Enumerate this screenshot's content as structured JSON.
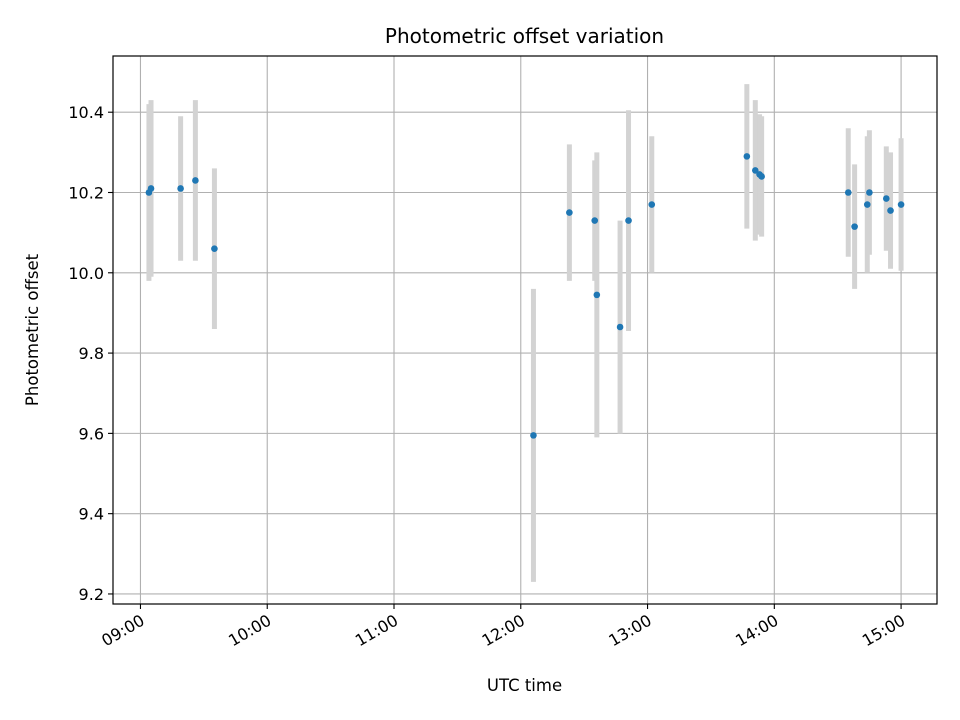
{
  "chart_data": {
    "type": "scatter",
    "title": "Photometric offset variation",
    "xlabel": "UTC time",
    "ylabel": "Photometric offset",
    "xlim": [
      "08:47",
      "15:17"
    ],
    "ylim": [
      9.175,
      10.54
    ],
    "grid": true,
    "x_ticks": [
      "09:00",
      "10:00",
      "11:00",
      "12:00",
      "13:00",
      "14:00",
      "15:00"
    ],
    "y_ticks": [
      9.2,
      9.4,
      9.6,
      9.8,
      10.0,
      10.2,
      10.4
    ],
    "y_tick_labels": [
      "9.2",
      "9.4",
      "9.6",
      "9.8",
      "10.0",
      "10.2",
      "10.4"
    ],
    "colors": {
      "points": "#1f77b4",
      "errorbars": "#d3d3d3",
      "grid": "#b0b0b0"
    },
    "points": [
      {
        "x": "09:04",
        "y": 10.2,
        "err": 0.22
      },
      {
        "x": "09:05",
        "y": 10.21,
        "err": 0.22
      },
      {
        "x": "09:19",
        "y": 10.21,
        "err": 0.18
      },
      {
        "x": "09:26",
        "y": 10.23,
        "err": 0.2
      },
      {
        "x": "09:35",
        "y": 10.06,
        "err": 0.2
      },
      {
        "x": "12:06",
        "y": 9.595,
        "err": 0.365
      },
      {
        "x": "12:23",
        "y": 10.15,
        "err": 0.17
      },
      {
        "x": "12:35",
        "y": 10.13,
        "err": 0.15
      },
      {
        "x": "12:36",
        "y": 9.945,
        "err": 0.355
      },
      {
        "x": "12:47",
        "y": 9.865,
        "err": 0.265
      },
      {
        "x": "12:51",
        "y": 10.13,
        "err": 0.275
      },
      {
        "x": "13:02",
        "y": 10.17,
        "err": 0.17
      },
      {
        "x": "13:47",
        "y": 10.29,
        "err": 0.18
      },
      {
        "x": "13:51",
        "y": 10.255,
        "err": 0.175
      },
      {
        "x": "13:53",
        "y": 10.245,
        "err": 0.15
      },
      {
        "x": "13:54",
        "y": 10.24,
        "err": 0.15
      },
      {
        "x": "14:35",
        "y": 10.2,
        "err": 0.16
      },
      {
        "x": "14:38",
        "y": 10.115,
        "err": 0.155
      },
      {
        "x": "14:44",
        "y": 10.17,
        "err": 0.17
      },
      {
        "x": "14:45",
        "y": 10.2,
        "err": 0.155
      },
      {
        "x": "14:53",
        "y": 10.185,
        "err": 0.13
      },
      {
        "x": "14:55",
        "y": 10.155,
        "err": 0.145
      },
      {
        "x": "15:00",
        "y": 10.17,
        "err": 0.165
      }
    ]
  }
}
